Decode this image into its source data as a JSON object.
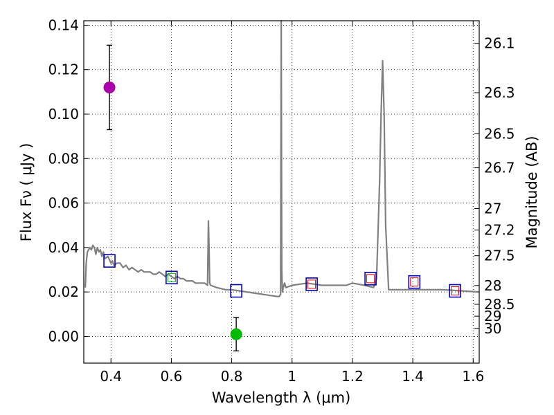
{
  "chart_data": {
    "type": "line",
    "title": "",
    "xlabel": "Wavelength  λ (μm)",
    "ylabel": "Flux  Fν  ( μJy )",
    "ylabel_right": "Magnitude (AB)",
    "xlim": [
      0.31,
      1.62
    ],
    "ylim": [
      -0.012,
      0.142
    ],
    "grid": true,
    "x_ticks": [
      0.4,
      0.6,
      0.8,
      1.0,
      1.2,
      1.4,
      1.6
    ],
    "x_tick_labels": [
      "0.4",
      "0.6",
      "0.8",
      "1",
      "1.2",
      "1.4",
      "1.6"
    ],
    "y_ticks": [
      0.0,
      0.02,
      0.04,
      0.06,
      0.08,
      0.1,
      0.12,
      0.14
    ],
    "y_tick_labels": [
      "0.00",
      "0.02",
      "0.04",
      "0.06",
      "0.08",
      "0.10",
      "0.12",
      "0.14"
    ],
    "magnitude_ticks": [
      {
        "label": "26.1",
        "mag": 26.1
      },
      {
        "label": "26.3",
        "mag": 26.3
      },
      {
        "label": "26.5",
        "mag": 26.5
      },
      {
        "label": "26.7",
        "mag": 26.7
      },
      {
        "label": "27",
        "mag": 27.0
      },
      {
        "label": "27.2",
        "mag": 27.2
      },
      {
        "label": "27.5",
        "mag": 27.5
      },
      {
        "label": "28",
        "mag": 28.0
      },
      {
        "label": "28.5",
        "mag": 28.5
      },
      {
        "label": "29",
        "mag": 29.0
      },
      {
        "label": "30",
        "mag": 30.0
      }
    ],
    "series": [
      {
        "name": "model spectrum",
        "color": "#808080",
        "x": [
          0.315,
          0.318,
          0.322,
          0.33,
          0.335,
          0.34,
          0.345,
          0.35,
          0.355,
          0.36,
          0.365,
          0.37,
          0.375,
          0.38,
          0.39,
          0.4,
          0.405,
          0.41,
          0.42,
          0.43,
          0.44,
          0.45,
          0.46,
          0.47,
          0.48,
          0.49,
          0.5,
          0.51,
          0.52,
          0.53,
          0.54,
          0.55,
          0.56,
          0.57,
          0.58,
          0.59,
          0.6,
          0.61,
          0.62,
          0.63,
          0.64,
          0.65,
          0.66,
          0.67,
          0.68,
          0.69,
          0.7,
          0.71,
          0.72,
          0.723,
          0.725,
          0.727,
          0.73,
          0.75,
          0.78,
          0.8,
          0.85,
          0.9,
          0.95,
          0.958,
          0.962,
          0.964,
          0.966,
          0.968,
          0.971,
          0.975,
          0.98,
          1.0,
          1.05,
          1.1,
          1.15,
          1.18,
          1.2,
          1.24,
          1.27,
          1.28,
          1.29,
          1.295,
          1.3,
          1.305,
          1.31,
          1.32,
          1.4,
          1.5,
          1.62
        ],
        "y": [
          0.022,
          0.033,
          0.038,
          0.04,
          0.039,
          0.041,
          0.04,
          0.037,
          0.04,
          0.038,
          0.039,
          0.036,
          0.038,
          0.035,
          0.036,
          0.033,
          0.034,
          0.032,
          0.033,
          0.033,
          0.031,
          0.032,
          0.03,
          0.031,
          0.03,
          0.029,
          0.03,
          0.029,
          0.029,
          0.029,
          0.028,
          0.028,
          0.029,
          0.028,
          0.027,
          0.028,
          0.027,
          0.026,
          0.027,
          0.026,
          0.026,
          0.025,
          0.025,
          0.025,
          0.024,
          0.024,
          0.024,
          0.024,
          0.023,
          0.052,
          0.04,
          0.024,
          0.023,
          0.022,
          0.021,
          0.021,
          0.02,
          0.019,
          0.018,
          0.018,
          0.019,
          0.142,
          0.03,
          0.02,
          0.022,
          0.024,
          0.022,
          0.023,
          0.024,
          0.023,
          0.023,
          0.023,
          0.024,
          0.023,
          0.022,
          0.026,
          0.07,
          0.1,
          0.124,
          0.1,
          0.05,
          0.021,
          0.021,
          0.021,
          0.02
        ]
      }
    ],
    "points": [
      {
        "x": 0.395,
        "y": 0.112,
        "err": 0.019,
        "color": "#aa00aa",
        "name": "purple-point"
      },
      {
        "x": 0.815,
        "y": 0.001,
        "err": 0.0075,
        "color": "#00bb00",
        "name": "green-point"
      }
    ],
    "boxes": [
      {
        "x": 0.395,
        "y": 0.034,
        "color": "#0000cc"
      },
      {
        "x": 0.601,
        "y": 0.0265,
        "color": "#0000cc"
      },
      {
        "x": 0.815,
        "y": 0.0205,
        "color": "#0000cc"
      },
      {
        "x": 1.065,
        "y": 0.0235,
        "color": "#0000cc"
      },
      {
        "x": 1.26,
        "y": 0.026,
        "color": "#0000cc"
      },
      {
        "x": 1.405,
        "y": 0.0245,
        "color": "#0000cc"
      },
      {
        "x": 1.54,
        "y": 0.0205,
        "color": "#0000cc"
      }
    ],
    "inner_markers": [
      {
        "x": 0.601,
        "y": 0.0265,
        "color": "#00aa00"
      },
      {
        "x": 1.065,
        "y": 0.0235,
        "color": "#dd0000"
      },
      {
        "x": 1.26,
        "y": 0.026,
        "color": "#dd0000"
      },
      {
        "x": 1.405,
        "y": 0.0245,
        "color": "#dd0000"
      },
      {
        "x": 1.54,
        "y": 0.0205,
        "color": "#dd0000"
      }
    ]
  }
}
